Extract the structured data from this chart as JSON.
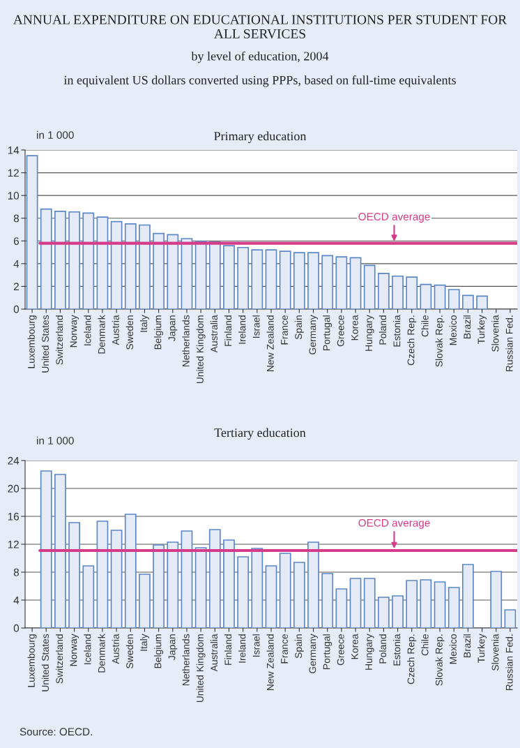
{
  "chart_data": [
    {
      "type": "bar",
      "title": "Primary education",
      "ylabel": "in 1 000",
      "annotations": [
        "ANNUAL EXPENDITURE ON EDUCATIONAL INSTITUTIONS PER STUDENT FOR ALL SERVICES",
        "by level of education, 2004",
        "in equivalent US dollars converted using PPPs, based on full-time equivalents"
      ],
      "categories": [
        "Luxembourg",
        "United States",
        "Switzerland",
        "Norway",
        "Iceland",
        "Denmark",
        "Austria",
        "Sweden",
        "Italy",
        "Belgium",
        "Japan",
        "Netherlands",
        "United Kingdom",
        "Australia",
        "Finland",
        "Ireland",
        "Israel",
        "New Zealand",
        "France",
        "Spain",
        "Germany",
        "Portugal",
        "Greece",
        "Korea",
        "Hungary",
        "Poland",
        "Estonia",
        "Czech Rep.",
        "Chile",
        "Slovak Rep.",
        "Mexico",
        "Brazil",
        "Turkey",
        "Slovenia",
        "Russian Fed."
      ],
      "values": [
        13.5,
        8.8,
        8.6,
        8.55,
        8.45,
        8.1,
        7.7,
        7.5,
        7.4,
        6.65,
        6.55,
        6.2,
        5.95,
        5.9,
        5.58,
        5.42,
        5.21,
        5.21,
        5.09,
        4.97,
        4.97,
        4.71,
        4.6,
        4.52,
        3.85,
        3.14,
        2.9,
        2.82,
        2.17,
        2.11,
        1.72,
        1.2,
        1.14,
        null,
        null
      ],
      "color": "#e4ebf7",
      "ylim": [
        0,
        14
      ],
      "yticks": [
        0,
        2,
        4,
        6,
        8,
        10,
        12,
        14
      ],
      "grid": "y",
      "ref_lines": [
        {
          "axis": "y",
          "value": 5.8,
          "label": "OECD average",
          "color": "#d63b8a"
        }
      ]
    },
    {
      "type": "bar",
      "title": "Tertiary education",
      "ylabel": "in 1 000",
      "annotations": [
        "Source: OECD."
      ],
      "categories": [
        "Luxembourg",
        "United States",
        "Switzerland",
        "Norway",
        "Iceland",
        "Denmark",
        "Austria",
        "Sweden",
        "Italy",
        "Belgium",
        "Japan",
        "Netherlands",
        "United Kingdom",
        "Australia",
        "Finland",
        "Ireland",
        "Israel",
        "New Zealand",
        "France",
        "Spain",
        "Germany",
        "Portugal",
        "Greece",
        "Korea",
        "Hungary",
        "Poland",
        "Estonia",
        "Czech Rep.",
        "Chile",
        "Slovak Rep.",
        "Mexico",
        "Brazil",
        "Turkey",
        "Slovenia",
        "Russian Fed."
      ],
      "values": [
        null,
        22.5,
        22.0,
        15.1,
        8.9,
        15.3,
        14.0,
        16.3,
        7.7,
        11.9,
        12.3,
        13.9,
        11.5,
        14.1,
        12.6,
        10.2,
        11.4,
        8.9,
        10.7,
        9.4,
        12.3,
        7.8,
        5.6,
        7.1,
        7.1,
        4.4,
        4.6,
        6.8,
        6.9,
        6.6,
        5.8,
        9.1,
        null,
        8.1,
        2.6
      ],
      "color": "#e4ebf7",
      "ylim": [
        0,
        24
      ],
      "yticks": [
        0,
        4,
        8,
        12,
        16,
        20,
        24
      ],
      "grid": "y",
      "ref_lines": [
        {
          "axis": "y",
          "value": 11.1,
          "label": "OECD average",
          "color": "#d63b8a"
        }
      ]
    }
  ]
}
